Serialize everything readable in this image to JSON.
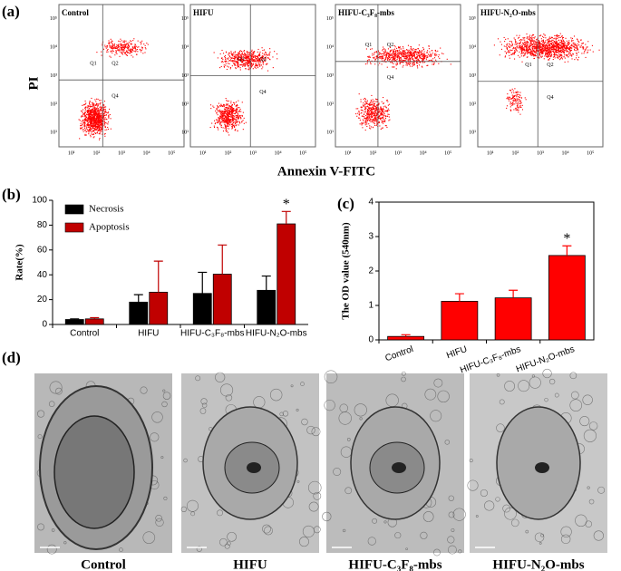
{
  "panel_labels": [
    "(a)",
    "(b)",
    "(c)",
    "(d)"
  ],
  "flow": {
    "y_label": "PI",
    "x_label": "Annexin V-FITC",
    "plots": [
      "Control",
      "HIFU",
      "HIFU-C₃F₈-mbs",
      "HIFU-N₂O-mbs"
    ],
    "quadrant_labels": [
      "Q1",
      "Q2",
      "Q4"
    ],
    "ticks": [
      "10¹",
      "10²",
      "10³",
      "10⁴",
      "10⁵"
    ]
  },
  "tem": {
    "captions": [
      "Control",
      "HIFU",
      "HIFU-C₃F₈-mbs",
      "HIFU-N₂O-mbs"
    ]
  },
  "chart_data": [
    {
      "type": "bar",
      "y_label": "Rate(%)",
      "categories": [
        "Control",
        "HIFU",
        "HIFU-C₃F₈-mbs",
        "HIFU-N₂O-mbs"
      ],
      "series": [
        {
          "name": "Necrosis",
          "color": "#000000",
          "values": [
            4,
            18,
            25,
            27.5
          ],
          "errors": [
            0.5,
            6,
            17,
            11.5
          ]
        },
        {
          "name": "Apoptosis",
          "color": "#c00000",
          "values": [
            4.5,
            26,
            40.5,
            81
          ],
          "errors": [
            1,
            25,
            23.5,
            10
          ]
        }
      ],
      "ylim": [
        0,
        100
      ],
      "yticks": [
        0,
        20,
        40,
        60,
        80,
        100
      ],
      "legend": "top-left",
      "annotation": "*"
    },
    {
      "type": "bar",
      "y_label": "The OD value (540nm)",
      "categories": [
        "Control",
        "HIFU",
        "HIFU-C₃F₈-mbs",
        "HIFU-N₂O-mbs"
      ],
      "values": [
        0.1,
        1.12,
        1.22,
        2.45
      ],
      "errors": [
        0.05,
        0.22,
        0.22,
        0.28
      ],
      "color": "#ff0000",
      "ylim": [
        0,
        4
      ],
      "yticks": [
        0,
        1,
        2,
        3,
        4
      ],
      "annotation": "*"
    }
  ]
}
